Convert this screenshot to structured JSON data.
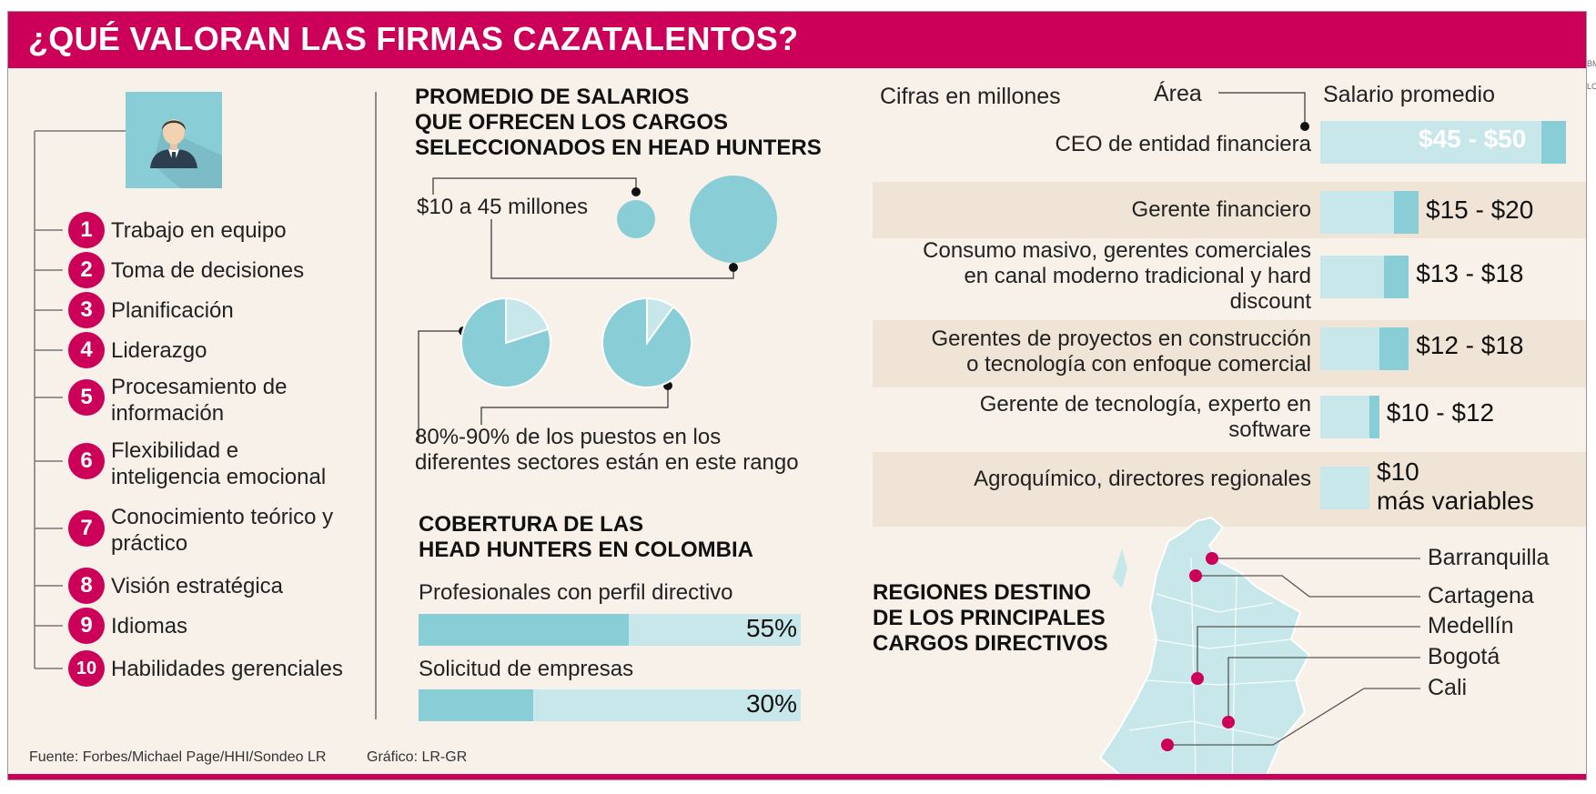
{
  "title": "¿QUÉ VALORAN LAS FIRMAS CAZATALENTOS?",
  "edge_fragments": [
    "BM",
    "LOGO"
  ],
  "skills": [
    {
      "num": "1",
      "text": "Trabajo en equipo"
    },
    {
      "num": "2",
      "text": "Toma de decisiones"
    },
    {
      "num": "3",
      "text": "Planificación"
    },
    {
      "num": "4",
      "text": "Liderazgo"
    },
    {
      "num": "5",
      "text": "Procesamiento de\ninformación"
    },
    {
      "num": "6",
      "text": "Flexibilidad e\ninteligencia emocional"
    },
    {
      "num": "7",
      "text": "Conocimiento teórico y\npráctico"
    },
    {
      "num": "8",
      "text": "Visión estratégica"
    },
    {
      "num": "9",
      "text": "Idiomas"
    },
    {
      "num": "10",
      "text": "Habilidades gerenciales"
    }
  ],
  "salaries_section": {
    "title": "PROMEDIO DE SALARIOS\nQUE OFRECEN LOS CARGOS\nSELECCIONADOS EN HEAD HUNTERS",
    "range_min": "$10",
    "range_mid": " a ",
    "range_max": "45",
    "range_unit": " millones",
    "pct_bold": "80%-90%",
    "pct_text_line1": " de los puestos en los",
    "pct_text_line2": "diferentes sectores están en este rango",
    "pie_share_min": 0.8,
    "pie_share_max": 0.9
  },
  "coverage": {
    "title": "COBERTURA DE LAS\nHEAD HUNTERS EN COLOMBIA",
    "bars": [
      {
        "label": "Profesionales con perfil directivo",
        "value": 55,
        "value_label": "55%"
      },
      {
        "label": "Solicitud de empresas",
        "value": 30,
        "value_label": "30%"
      }
    ]
  },
  "salary_table": {
    "note": "Cifras en millones",
    "area_header": "Área",
    "salary_header": "Salario promedio",
    "rows": [
      {
        "area": "CEO de entidad financiera",
        "salary": "$45 - $50",
        "low": 45,
        "high": 50
      },
      {
        "area": "Gerente financiero",
        "salary": "$15 - $20",
        "low": 15,
        "high": 20
      },
      {
        "area": "Consumo masivo, gerentes comerciales\nen canal moderno tradicional y hard\ndiscount",
        "salary": "$13 - $18",
        "low": 13,
        "high": 18
      },
      {
        "area": "Gerentes de proyectos en construcción\no tecnología con enfoque comercial",
        "salary": "$12 - $18",
        "low": 12,
        "high": 18
      },
      {
        "area": "Gerente de tecnología, experto en\nsoftware",
        "salary": "$10 - $12",
        "low": 10,
        "high": 12
      },
      {
        "area": "Agroquímico, directores regionales",
        "salary": "$10\nmás variables",
        "low": 10,
        "high": 10
      }
    ]
  },
  "regions": {
    "title": "REGIONES DESTINO\nDE LOS PRINCIPALES\nCARGOS DIRECTIVOS",
    "cities": [
      "Barranquilla",
      "Cartagena",
      "Medellín",
      "Bogotá",
      "Cali"
    ]
  },
  "footer": {
    "source": "Fuente: Forbes/Michael Page/HHI/Sondeo LR",
    "graphic": "Gráfico: LR-GR"
  },
  "colors": {
    "brand_magenta": "#cc0058",
    "accent_teal": "#89cdd6",
    "light_teal": "#c8e7ea",
    "background": "#f8f1e9",
    "band": "#efe4d6"
  }
}
